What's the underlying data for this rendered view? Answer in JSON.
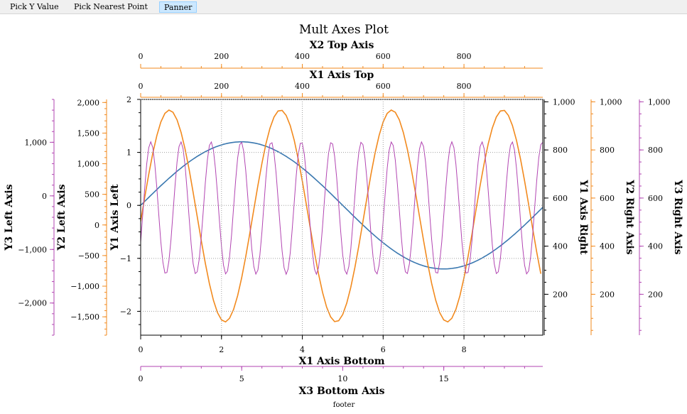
{
  "toolbar": {
    "pick_y_value": "Pick Y Value",
    "pick_nearest_point": "Pick Nearest Point",
    "panner": "Panner"
  },
  "colors": {
    "blue": "#3a78b0",
    "orange": "#f28a1e",
    "magenta": "#b245b2",
    "grid": "#a0a0a0"
  },
  "footer": "footer",
  "chart_data": {
    "type": "line",
    "title": "Mult Axes Plot",
    "grid": true,
    "axes": {
      "x1_bottom": {
        "label": "X1 Axis Bottom",
        "range": [
          0,
          9.95
        ],
        "ticks": [
          "0",
          "2",
          "4",
          "6",
          "8"
        ]
      },
      "x1_top": {
        "label": "X1 Axis Top",
        "range": [
          0,
          995
        ],
        "ticks": [
          "0",
          "200",
          "400",
          "600",
          "800"
        ]
      },
      "x2_top": {
        "label": "X2 Top Axis",
        "range": [
          0,
          995
        ],
        "ticks": [
          "0",
          "200",
          "400",
          "600",
          "800"
        ]
      },
      "x3_bottom": {
        "label": "X3 Bottom Axis",
        "range": [
          0,
          19.9
        ],
        "ticks": [
          "0",
          "5",
          "10",
          "15"
        ]
      },
      "y1_left": {
        "label": "Y1 Axis Left",
        "range": [
          -2.45,
          2.0
        ],
        "ticks": [
          "−2",
          "−1",
          "0",
          "1",
          "2"
        ]
      },
      "y2_left": {
        "label": "Y2 Left Axis",
        "range": [
          -1800,
          2050
        ],
        "ticks": [
          "−1,500",
          "−1,000",
          "−500",
          "0",
          "500",
          "1,000",
          "1,500",
          "2,000"
        ]
      },
      "y3_left": {
        "label": "Y3 Left Axis",
        "range": [
          -2600,
          1800
        ],
        "ticks": [
          "−2,000",
          "−1,000",
          "0",
          "1,000"
        ]
      },
      "y1_right": {
        "label": "Y1 Axis Right",
        "range": [
          30,
          1010
        ],
        "ticks": [
          "200",
          "400",
          "600",
          "800",
          "1,000"
        ]
      },
      "y2_right": {
        "label": "Y2 Right Axis",
        "range": [
          30,
          1010
        ],
        "ticks": [
          "200",
          "400",
          "600",
          "800",
          "1,000"
        ]
      },
      "y3_right": {
        "label": "Y3 Right Axis",
        "range": [
          30,
          1010
        ],
        "ticks": [
          "200",
          "400",
          "600",
          "800",
          "1,000"
        ]
      }
    },
    "series": [
      {
        "color": "#3a78b0",
        "x_start": 0,
        "x_end": 9.95,
        "x_step": 0.05,
        "amplitude": 1.2,
        "cycles_over_range": 1,
        "phase": 0,
        "axis": "y1_left"
      },
      {
        "color": "#f28a1e",
        "x_start": 0,
        "x_end": 9.95,
        "x_step": 0.1,
        "amplitude": 2.0,
        "offset": -0.2,
        "period": 2.75,
        "peak_x": 0.71,
        "axis": "y1_left"
      },
      {
        "color": "#b245b2",
        "x_start": 0,
        "x_end": 9.95,
        "x_step": 0.05,
        "amplitude": 1.25,
        "offset": -0.05,
        "period": 0.745,
        "peak_x": 0.25,
        "axis": "y1_left"
      }
    ],
    "footer": "footer"
  }
}
